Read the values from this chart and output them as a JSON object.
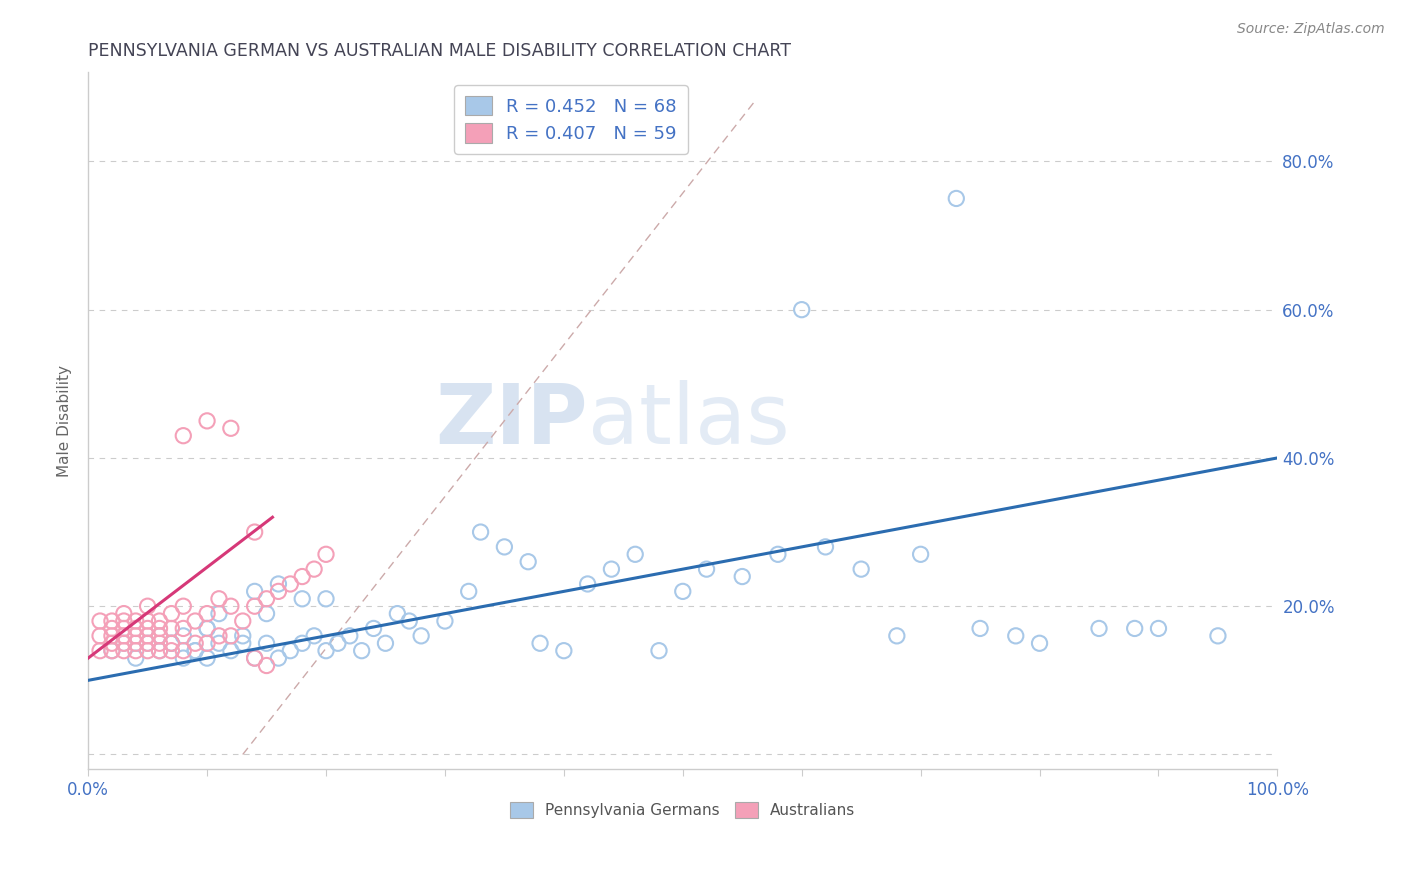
{
  "title": "PENNSYLVANIA GERMAN VS AUSTRALIAN MALE DISABILITY CORRELATION CHART",
  "source": "Source: ZipAtlas.com",
  "ylabel": "Male Disability",
  "xlim": [
    0.0,
    1.0
  ],
  "ylim": [
    -0.02,
    0.92
  ],
  "color_blue": "#a8c8e8",
  "color_pink": "#f4a0b8",
  "color_line_blue": "#2b6cb0",
  "color_line_pink": "#d63878",
  "legend_label1": "R = 0.452   N = 68",
  "legend_label2": "R = 0.407   N = 59",
  "legend_color1": "#a8c8e8",
  "legend_color2": "#f4a0b8",
  "watermark_zip": "ZIP",
  "watermark_atlas": "atlas",
  "blue_x": [
    0.02,
    0.03,
    0.04,
    0.05,
    0.06,
    0.07,
    0.08,
    0.08,
    0.09,
    0.1,
    0.1,
    0.11,
    0.12,
    0.13,
    0.14,
    0.14,
    0.15,
    0.16,
    0.16,
    0.17,
    0.18,
    0.19,
    0.2,
    0.21,
    0.22,
    0.23,
    0.24,
    0.25,
    0.26,
    0.27,
    0.28,
    0.3,
    0.32,
    0.33,
    0.35,
    0.37,
    0.38,
    0.4,
    0.42,
    0.44,
    0.46,
    0.48,
    0.5,
    0.52,
    0.55,
    0.58,
    0.6,
    0.62,
    0.65,
    0.68,
    0.7,
    0.73,
    0.75,
    0.78,
    0.8,
    0.85,
    0.88,
    0.9,
    0.95,
    0.06,
    0.07,
    0.09,
    0.1,
    0.11,
    0.13,
    0.15,
    0.18,
    0.2
  ],
  "blue_y": [
    0.14,
    0.15,
    0.13,
    0.15,
    0.14,
    0.15,
    0.13,
    0.16,
    0.14,
    0.13,
    0.17,
    0.15,
    0.14,
    0.16,
    0.13,
    0.22,
    0.15,
    0.13,
    0.23,
    0.14,
    0.15,
    0.16,
    0.14,
    0.15,
    0.16,
    0.14,
    0.17,
    0.15,
    0.19,
    0.18,
    0.16,
    0.18,
    0.22,
    0.3,
    0.28,
    0.26,
    0.15,
    0.14,
    0.23,
    0.25,
    0.27,
    0.14,
    0.22,
    0.25,
    0.24,
    0.27,
    0.6,
    0.28,
    0.25,
    0.16,
    0.27,
    0.75,
    0.17,
    0.16,
    0.15,
    0.17,
    0.17,
    0.17,
    0.16,
    0.16,
    0.15,
    0.14,
    0.17,
    0.19,
    0.15,
    0.19,
    0.21,
    0.21
  ],
  "pink_x": [
    0.01,
    0.01,
    0.01,
    0.02,
    0.02,
    0.02,
    0.02,
    0.02,
    0.03,
    0.03,
    0.03,
    0.03,
    0.03,
    0.03,
    0.04,
    0.04,
    0.04,
    0.04,
    0.04,
    0.05,
    0.05,
    0.05,
    0.05,
    0.05,
    0.05,
    0.06,
    0.06,
    0.06,
    0.06,
    0.06,
    0.07,
    0.07,
    0.07,
    0.07,
    0.08,
    0.08,
    0.08,
    0.09,
    0.09,
    0.1,
    0.1,
    0.11,
    0.11,
    0.12,
    0.12,
    0.12,
    0.13,
    0.14,
    0.15,
    0.16,
    0.17,
    0.18,
    0.19,
    0.2,
    0.08,
    0.1,
    0.14,
    0.14,
    0.15
  ],
  "pink_y": [
    0.14,
    0.16,
    0.18,
    0.14,
    0.15,
    0.16,
    0.17,
    0.18,
    0.14,
    0.15,
    0.16,
    0.17,
    0.18,
    0.19,
    0.14,
    0.15,
    0.16,
    0.17,
    0.18,
    0.14,
    0.15,
    0.16,
    0.17,
    0.18,
    0.2,
    0.14,
    0.15,
    0.16,
    0.17,
    0.18,
    0.14,
    0.15,
    0.17,
    0.19,
    0.14,
    0.17,
    0.2,
    0.15,
    0.18,
    0.15,
    0.19,
    0.16,
    0.21,
    0.16,
    0.2,
    0.44,
    0.18,
    0.2,
    0.21,
    0.22,
    0.23,
    0.24,
    0.25,
    0.27,
    0.43,
    0.45,
    0.13,
    0.3,
    0.12
  ]
}
